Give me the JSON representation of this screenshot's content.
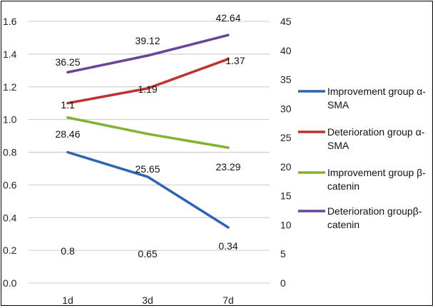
{
  "chart_data": {
    "type": "line",
    "categories": [
      "1d",
      "3d",
      "7d"
    ],
    "title": "",
    "xlabel": "",
    "ylabel": "",
    "y_left": {
      "ylim": [
        0,
        1.6
      ],
      "ticks": [
        "0.0",
        "0.2",
        "0.4",
        "0.6",
        "0.8",
        "1.0",
        "1.2",
        "1.4",
        "1.6"
      ]
    },
    "y_right": {
      "ylim": [
        0,
        45
      ],
      "ticks": [
        "0",
        "5",
        "10",
        "15",
        "20",
        "25",
        "30",
        "35",
        "40",
        "45"
      ]
    },
    "grid": true,
    "legend_position": "right",
    "series": [
      {
        "name": "Improvement group α-SMA",
        "axis": "left",
        "color": "#2e64b6",
        "values": [
          0.8,
          0.65,
          0.34
        ],
        "labels": [
          "0.8",
          "0.65",
          "0.34"
        ]
      },
      {
        "name": "Deterioration group α-SMA",
        "axis": "left",
        "color": "#c0312d",
        "values": [
          1.1,
          1.19,
          1.37
        ],
        "labels": [
          "1.1",
          "1.19",
          "1.37"
        ]
      },
      {
        "name": "Improvement group β-catenin",
        "axis": "right",
        "color": "#7fb332",
        "values": [
          28.46,
          25.65,
          23.29
        ],
        "labels": [
          "28.46",
          "25.65",
          "23.29"
        ]
      },
      {
        "name": "Deterioration groupβ-catenin",
        "axis": "right",
        "color": "#6a4496",
        "values": [
          36.25,
          39.12,
          42.64
        ],
        "labels": [
          "36.25",
          "39.12",
          "42.64"
        ]
      }
    ]
  }
}
